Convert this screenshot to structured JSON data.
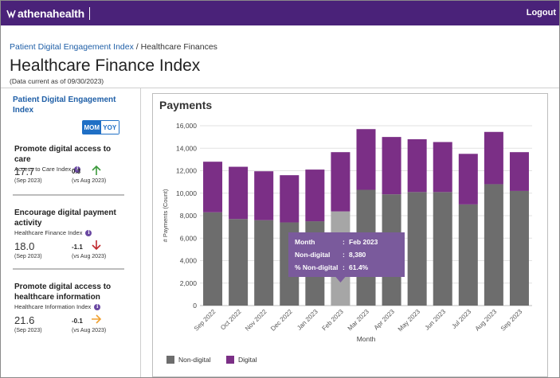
{
  "header": {
    "brand": "athenahealth",
    "logout_label": "Logout"
  },
  "breadcrumb": {
    "parent": "Patient Digital Engagement Index",
    "separator": "/",
    "current": "Healthcare Finances"
  },
  "page": {
    "title": "Healthcare Finance Index",
    "subtitle": "(Data current as of 09/30/2023)"
  },
  "left_panel": {
    "heading": "Patient Digital Engagement Index",
    "toggle": {
      "mom_label": "MOM",
      "yoy_label": "YOY",
      "selected": "MOM"
    },
    "metrics": [
      {
        "title": "Promote digital access to care",
        "subtitle": "Access to Care Index",
        "value": "17.7",
        "value_date": "(Sep 2023)",
        "change": "0.3",
        "change_date": "(vs Aug 2023)",
        "direction": "up",
        "arrow_color": "#3c9a3c"
      },
      {
        "title": "Encourage digital payment activity",
        "subtitle": "Healthcare Finance Index",
        "value": "18.0",
        "value_date": "(Sep 2023)",
        "change": "-1.1",
        "change_date": "(vs Aug 2023)",
        "direction": "down",
        "arrow_color": "#c0282d"
      },
      {
        "title": "Promote digital access to healthcare information",
        "subtitle": "Healthcare Information Index",
        "value": "21.6",
        "value_date": "(Sep 2023)",
        "change": "-0.1",
        "change_date": "(vs Aug 2023)",
        "direction": "right",
        "arrow_color": "#f0a030"
      }
    ]
  },
  "chart_data": {
    "type": "bar",
    "stacked": true,
    "title": "Payments",
    "xlabel": "Month",
    "ylabel": "# Payments (Count)",
    "ylim": [
      0,
      16000
    ],
    "yticks": [
      "0",
      "2,000",
      "4,000",
      "6,000",
      "8,000",
      "10,000",
      "12,000",
      "14,000",
      "16,000"
    ],
    "categories": [
      "Sep 2022",
      "Oct 2022",
      "Nov 2022",
      "Dec 2022",
      "Jan 2023",
      "Feb 2023",
      "Mar 2023",
      "Apr 2023",
      "May 2023",
      "Jun 2023",
      "Jul 2023",
      "Aug 2023",
      "Sep 2023"
    ],
    "series": [
      {
        "name": "Non-digital",
        "color": "#6d6d6d",
        "highlight_color": "#a6a6a6",
        "values": [
          8300,
          7700,
          7600,
          7400,
          7500,
          8380,
          10300,
          9900,
          10100,
          10100,
          9000,
          10800,
          10200
        ]
      },
      {
        "name": "Digital",
        "color": "#7b2f86",
        "values": [
          4500,
          4650,
          4350,
          4200,
          4600,
          5270,
          5400,
          5100,
          4700,
          4450,
          4500,
          4650,
          3450
        ]
      }
    ],
    "legend_position": "bottom-left",
    "grid": true,
    "highlight_index": 5,
    "tooltip": {
      "month_label": "Month",
      "month_value": "Feb 2023",
      "nondigital_label": "Non-digital",
      "nondigital_value": "8,380",
      "pct_label": "% Non-digital",
      "pct_value": "61.4%",
      "background": "#7a5a9c"
    }
  }
}
